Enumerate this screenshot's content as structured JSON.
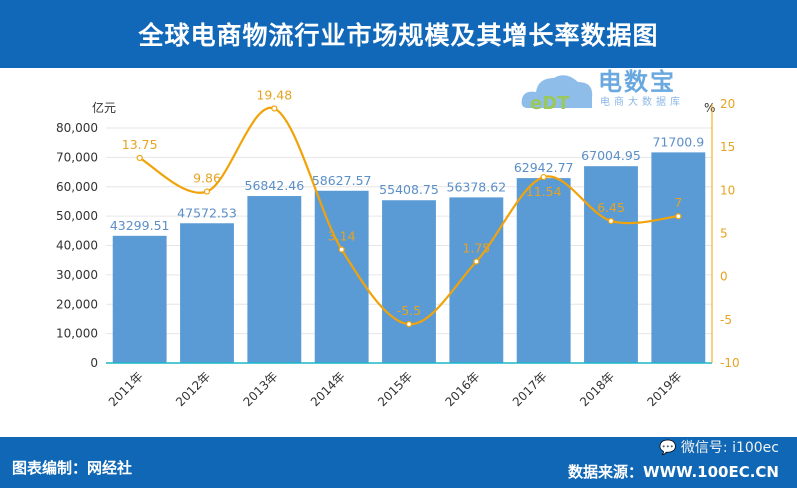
{
  "header": {
    "title": "全球电商物流行业市场规模及其增长率数据图"
  },
  "footer": {
    "credit": "图表编制：网经社",
    "source": "数据来源：WWW.100EC.CN",
    "wechat": "微信号: i100ec"
  },
  "logo": {
    "name": "电数宝",
    "tagline": "电商大数据库",
    "mark": "eDT"
  },
  "chart_data": {
    "type": "bar+line",
    "categories": [
      "2011年",
      "2012年",
      "2013年",
      "2014年",
      "2015年",
      "2016年",
      "2017年",
      "2018年",
      "2019年"
    ],
    "series": [
      {
        "type": "bar",
        "axis": "left",
        "color": "#5b9bd5",
        "values": [
          43299.51,
          47572.53,
          56842.46,
          58627.57,
          55408.75,
          56378.62,
          62942.77,
          67004.95,
          71700.9
        ]
      },
      {
        "type": "line",
        "axis": "right",
        "color": "#f0a30a",
        "smooth": true,
        "values": [
          13.75,
          9.86,
          19.48,
          3.14,
          -5.5,
          1.75,
          11.54,
          6.45,
          7
        ]
      }
    ],
    "left_axis": {
      "unit": "亿元",
      "min": 0,
      "max": 80000,
      "ticks": [
        0,
        10000,
        20000,
        30000,
        40000,
        50000,
        60000,
        70000,
        80000
      ],
      "tick_labels": [
        "0",
        "10,000",
        "20,000",
        "30,000",
        "40,000",
        "50,000",
        "60,000",
        "70,000",
        "80,000"
      ]
    },
    "right_axis": {
      "unit": "%",
      "min": -10,
      "max": 20,
      "ticks": [
        -10,
        -5,
        0,
        5,
        10,
        15,
        20
      ]
    },
    "grid": true
  }
}
